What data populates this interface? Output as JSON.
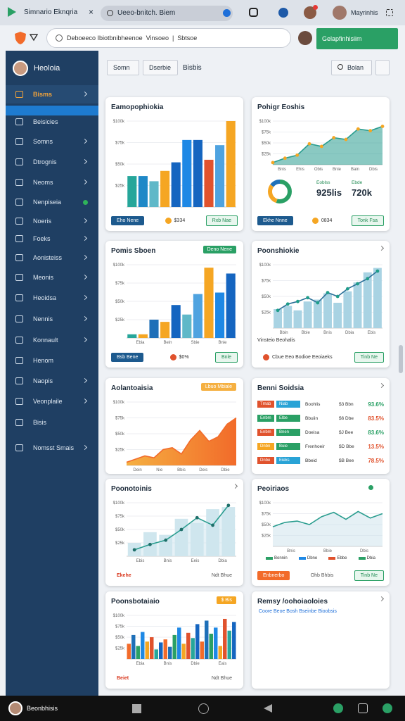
{
  "browser": {
    "tabs": [
      "Simnario Eknqria",
      "Ueeo-bnitch. Biem"
    ],
    "profile": "Mayrinhis",
    "url": "Deboeeco Ibiotbnibheenoe  Vinsoeo  |  Sbtsoe",
    "action": "Gelapfinhisiim"
  },
  "sidebar": {
    "user": "Heoloia",
    "items": [
      {
        "label": "Bisms",
        "chevron": true,
        "active": true
      },
      {
        "label": "Beisicies"
      },
      {
        "label": "Somns",
        "chevron": true
      },
      {
        "label": "Dtrognis",
        "chevron": true
      },
      {
        "label": "Neoms",
        "chevron": true
      },
      {
        "label": "Nenpiseia",
        "dot": "#2fb35a"
      },
      {
        "label": "Noeris",
        "chevron": true
      },
      {
        "label": "Foeks",
        "chevron": true
      },
      {
        "label": "Aonisteiss",
        "chevron": true
      },
      {
        "label": "Meonis",
        "chevron": true
      },
      {
        "label": "Heoidsa",
        "chevron": true
      },
      {
        "label": "Nennis",
        "chevron": true
      },
      {
        "label": "Konnault",
        "chevron": true
      },
      {
        "label": "Henom"
      },
      {
        "label": "Naopis",
        "chevron": true
      },
      {
        "label": "Veonplaile",
        "chevron": true
      },
      {
        "label": "Bisis"
      },
      {
        "label": "Nomsst Smais",
        "chevron": true
      }
    ]
  },
  "toolbar": {
    "buttons": [
      "Somn",
      "Dserbie"
    ],
    "label": "Bisbis",
    "search": "Bolan"
  },
  "cards": [
    {
      "title": "Eamopophiokia",
      "chart": {
        "type": "bar",
        "ylim": [
          0,
          100
        ],
        "yticks": [
          {
            "value": 25,
            "label": "$25k"
          },
          {
            "value": 50,
            "label": "$50k"
          },
          {
            "value": 75,
            "label": "$75k"
          },
          {
            "value": 100,
            "label": "$100k"
          }
        ],
        "values": [
          36,
          36,
          30,
          42,
          52,
          78,
          78,
          55,
          72,
          100
        ],
        "colors": [
          "#26a69a",
          "#1e88c7",
          "#5fb8c8",
          "#f5a623",
          "#1565c0",
          "#1e88e5",
          "#1565c0",
          "#e0522d",
          "#4fa3e0",
          "#f5a623"
        ]
      },
      "footer": [
        {
          "text": "Eho Nene",
          "style": "primary"
        },
        {
          "text": "$334",
          "style": "dot",
          "color": "#f5a623"
        },
        {
          "text": "Rxb Nae",
          "style": "success"
        }
      ]
    },
    {
      "title": "Pohigr Eoshis",
      "chart": {
        "type": "area",
        "ylim": [
          0,
          100
        ],
        "yticks": [
          {
            "value": 25,
            "label": "$25k"
          },
          {
            "value": 50,
            "label": "$50k"
          },
          {
            "value": 75,
            "label": "$75k"
          },
          {
            "value": 100,
            "label": "$100k"
          }
        ],
        "values": [
          5,
          15,
          22,
          48,
          42,
          62,
          58,
          82,
          78,
          88
        ],
        "color": "#2a9d8f",
        "dot_color": "#f5a623",
        "xlabels": [
          "Bnis",
          "Ehis",
          "Obis",
          "Bnie",
          "Bain",
          "Dbis"
        ]
      },
      "donut": {
        "values": [
          55,
          30,
          15
        ],
        "colors": [
          "#2aa065",
          "#f5a623",
          "#1e6fb8"
        ]
      },
      "metrics": [
        {
          "label": "Eoblss",
          "value": "925lis"
        },
        {
          "label": "Ebde",
          "value": "720k"
        }
      ],
      "footer": [
        {
          "text": "Ekhe Nnne",
          "style": "primary"
        },
        {
          "text": "0834",
          "style": "dot",
          "color": "#f5a623"
        },
        {
          "text": "Tonk Fsa",
          "style": "success"
        }
      ]
    },
    {
      "title": "Pomis Sboen",
      "badge": "Deno Nene",
      "badge_color": "#2aa065",
      "chart": {
        "type": "bar",
        "ylim": [
          0,
          100
        ],
        "yticks": [
          {
            "value": 25,
            "label": "$25k"
          },
          {
            "value": 50,
            "label": "$50k"
          },
          {
            "value": 75,
            "label": "$75k"
          },
          {
            "value": 100,
            "label": "$100k"
          }
        ],
        "values": [
          5,
          5,
          25,
          22,
          45,
          32,
          60,
          96,
          62,
          88
        ],
        "colors": [
          "#26a69a",
          "#f5a623",
          "#1e6fb8",
          "#f5a623",
          "#1565c0",
          "#5fb8c8",
          "#4fa3e0",
          "#f5a623",
          "#1e88e5",
          "#1565c0"
        ],
        "xlabels": [
          "Ebia",
          "Bein",
          "Sbie",
          "Bnie"
        ]
      },
      "footer": [
        {
          "text": "Bsb Bene",
          "style": "primary"
        },
        {
          "text": "$0%",
          "style": "dot",
          "color": "#e0522d"
        },
        {
          "text": "Bnle",
          "style": "success"
        }
      ]
    },
    {
      "title": "Poonshiokie",
      "chevron": true,
      "chart": {
        "type": "combo",
        "ylim": [
          0,
          100
        ],
        "yticks": [
          {
            "value": 25,
            "label": "$25k"
          },
          {
            "value": 50,
            "label": "$50k"
          },
          {
            "value": 75,
            "label": "$75k"
          },
          {
            "value": 100,
            "label": "$100k"
          }
        ],
        "values": [
          30,
          35,
          28,
          42,
          45,
          55,
          40,
          58,
          72,
          88,
          95
        ],
        "bar_color": "#a9d3e3",
        "line": [
          28,
          38,
          42,
          48,
          40,
          56,
          50,
          62,
          70,
          78,
          90
        ],
        "line_color": "#2a6f97",
        "dot_color": "#1f9d8a",
        "xlabels": [
          "Bbin",
          "Bbie",
          "Bnis",
          "Dbia",
          "Ebis"
        ]
      },
      "note": "Vinsteio Beohalis",
      "footer": [
        {
          "text": "Cbue Eeo Bodioe Eeoiaeks",
          "style": "dot",
          "color": "#e0522d"
        },
        {
          "text": "Tinb Ne",
          "style": "success"
        }
      ]
    },
    {
      "title": "Aolantoaisia",
      "badge": "Lbuo Mbiale",
      "badge_color": "#f5b041",
      "chart": {
        "type": "area",
        "ylim": [
          0,
          100
        ],
        "yticks": [
          {
            "value": 25,
            "label": "$25k"
          },
          {
            "value": 50,
            "label": "$50k"
          },
          {
            "value": 75,
            "label": "$75k"
          },
          {
            "value": 100,
            "label": "$100k"
          }
        ],
        "values": [
          5,
          10,
          15,
          12,
          25,
          28,
          18,
          40,
          55,
          38,
          45,
          65,
          75
        ],
        "color": "#f26b2a",
        "gradient": "#f5b041",
        "xlabels": [
          "Dein",
          "Nie",
          "Bbis",
          "Deis",
          "Dbie"
        ]
      }
    },
    {
      "title": "Benni Soidsia",
      "chevron": true,
      "rows": [
        {
          "tags": [
            "Tmab",
            "Niab"
          ],
          "colors": [
            "#e0522d",
            "#29a3d6"
          ],
          "name": "Boohlis",
          "amount": "$3 Bbn",
          "pct": "93.6%",
          "pct_color": "#2aa065"
        },
        {
          "tags": [
            "Enbm",
            "Elbe"
          ],
          "colors": [
            "#2aa065",
            "#2aa065"
          ],
          "name": "Bbuiin",
          "amount": "$6 Dbe",
          "pct": "83.5%",
          "pct_color": "#e0522d"
        },
        {
          "tags": [
            "Enbm",
            "Bnen"
          ],
          "colors": [
            "#e0522d",
            "#2aa065"
          ],
          "name": "Doeisa",
          "amount": "$J Bee",
          "pct": "83.6%",
          "pct_color": "#2aa065"
        },
        {
          "tags": [
            "Dnbn",
            "Buie"
          ],
          "colors": [
            "#f5a623",
            "#2aa065"
          ],
          "name": "Frenhoeir",
          "amount": "$D Bbe",
          "pct": "13.5%",
          "pct_color": "#e0522d"
        },
        {
          "tags": [
            "Dnbe",
            "Eieks"
          ],
          "colors": [
            "#e0522d",
            "#29a3d6"
          ],
          "name": "Bbeid",
          "amount": "$B Bee",
          "pct": "78.5%",
          "pct_color": "#e0522d"
        }
      ]
    },
    {
      "title": "Poonotoinis",
      "chevron": true,
      "chart": {
        "type": "combo",
        "ylim": [
          0,
          100
        ],
        "yticks": [
          {
            "value": 25,
            "label": "$25k"
          },
          {
            "value": 50,
            "label": "$50k"
          },
          {
            "value": 75,
            "label": "$75k"
          },
          {
            "value": 100,
            "label": "$100k"
          }
        ],
        "values": [
          25,
          45,
          40,
          70,
          62,
          88,
          92
        ],
        "bar_color": "#cfe6ee",
        "line": [
          12,
          22,
          30,
          50,
          72,
          58,
          95
        ],
        "line_color": "#2a9d8f",
        "dot_color": "#1f6f6a",
        "area": true,
        "xlabels": [
          "Ebis",
          "Bnis",
          "Eeis",
          "Dbia"
        ]
      },
      "footer": [
        {
          "text": "Ekehe",
          "style": "red"
        },
        {
          "text": "Ndt Bhue",
          "style": "text"
        }
      ]
    },
    {
      "title": "Peoiriaos",
      "status": "#2aa065",
      "chart": {
        "type": "area",
        "ylim": [
          0,
          100
        ],
        "yticks": [
          {
            "value": 25,
            "label": "$25k"
          },
          {
            "value": 50,
            "label": "$50k"
          },
          {
            "value": 75,
            "label": "$75k"
          },
          {
            "value": 100,
            "label": "$100k"
          }
        ],
        "values": [
          45,
          55,
          58,
          50,
          68,
          78,
          62,
          80,
          65,
          75
        ],
        "color": "#2a9d8f",
        "fill": "#cfe3ec",
        "xlabels": [
          "Bnis",
          "Bbie",
          "Dbis"
        ]
      },
      "legend": [
        {
          "text": "Bonnin",
          "color": "#2aa065"
        },
        {
          "text": "Dbne",
          "color": "#1e88e5"
        },
        {
          "text": "Ebbe",
          "color": "#e0522d"
        },
        {
          "text": "Dbia",
          "color": "#2aa065"
        }
      ],
      "footer": [
        {
          "text": "Enbnerbo",
          "style": "orange"
        },
        {
          "text": "Ohb Bhbis",
          "style": "text"
        },
        {
          "text": "Tinb Ne",
          "style": "success"
        }
      ]
    },
    {
      "title": "Poonsbotaiaio",
      "badge": "$ Bis",
      "badge_color": "#f5a623",
      "chart": {
        "type": "bar",
        "ylim": [
          0,
          100
        ],
        "yticks": [
          {
            "value": 25,
            "label": "$25k"
          },
          {
            "value": 50,
            "label": "$50k"
          },
          {
            "value": 75,
            "label": "$75k"
          },
          {
            "value": 100,
            "label": "$100k"
          }
        ],
        "values": [
          35,
          55,
          30,
          62,
          40,
          50,
          22,
          38,
          45,
          28,
          55,
          72,
          35,
          60,
          48,
          80,
          40,
          88,
          58,
          72,
          30,
          92,
          65,
          85
        ],
        "colors": [
          "#f26b2a",
          "#1e6fb8",
          "#2aa065",
          "#1e88e5",
          "#f5a623",
          "#e0522d",
          "#26a69a",
          "#1565c0"
        ],
        "xlabels": [
          "Ebia",
          "Bnis",
          "Dbie",
          "Eais"
        ]
      },
      "footer": [
        {
          "text": "Beiet",
          "style": "red"
        },
        {
          "text": "Ndt Bhue",
          "style": "text"
        }
      ]
    },
    {
      "title": "Remsy /oohoiaoloies",
      "chevron": true,
      "subtitle": "Coore Beoe Bosh Bseinbe Bioobsis"
    }
  ],
  "taskbar": {
    "user": "Beonbhisis"
  }
}
